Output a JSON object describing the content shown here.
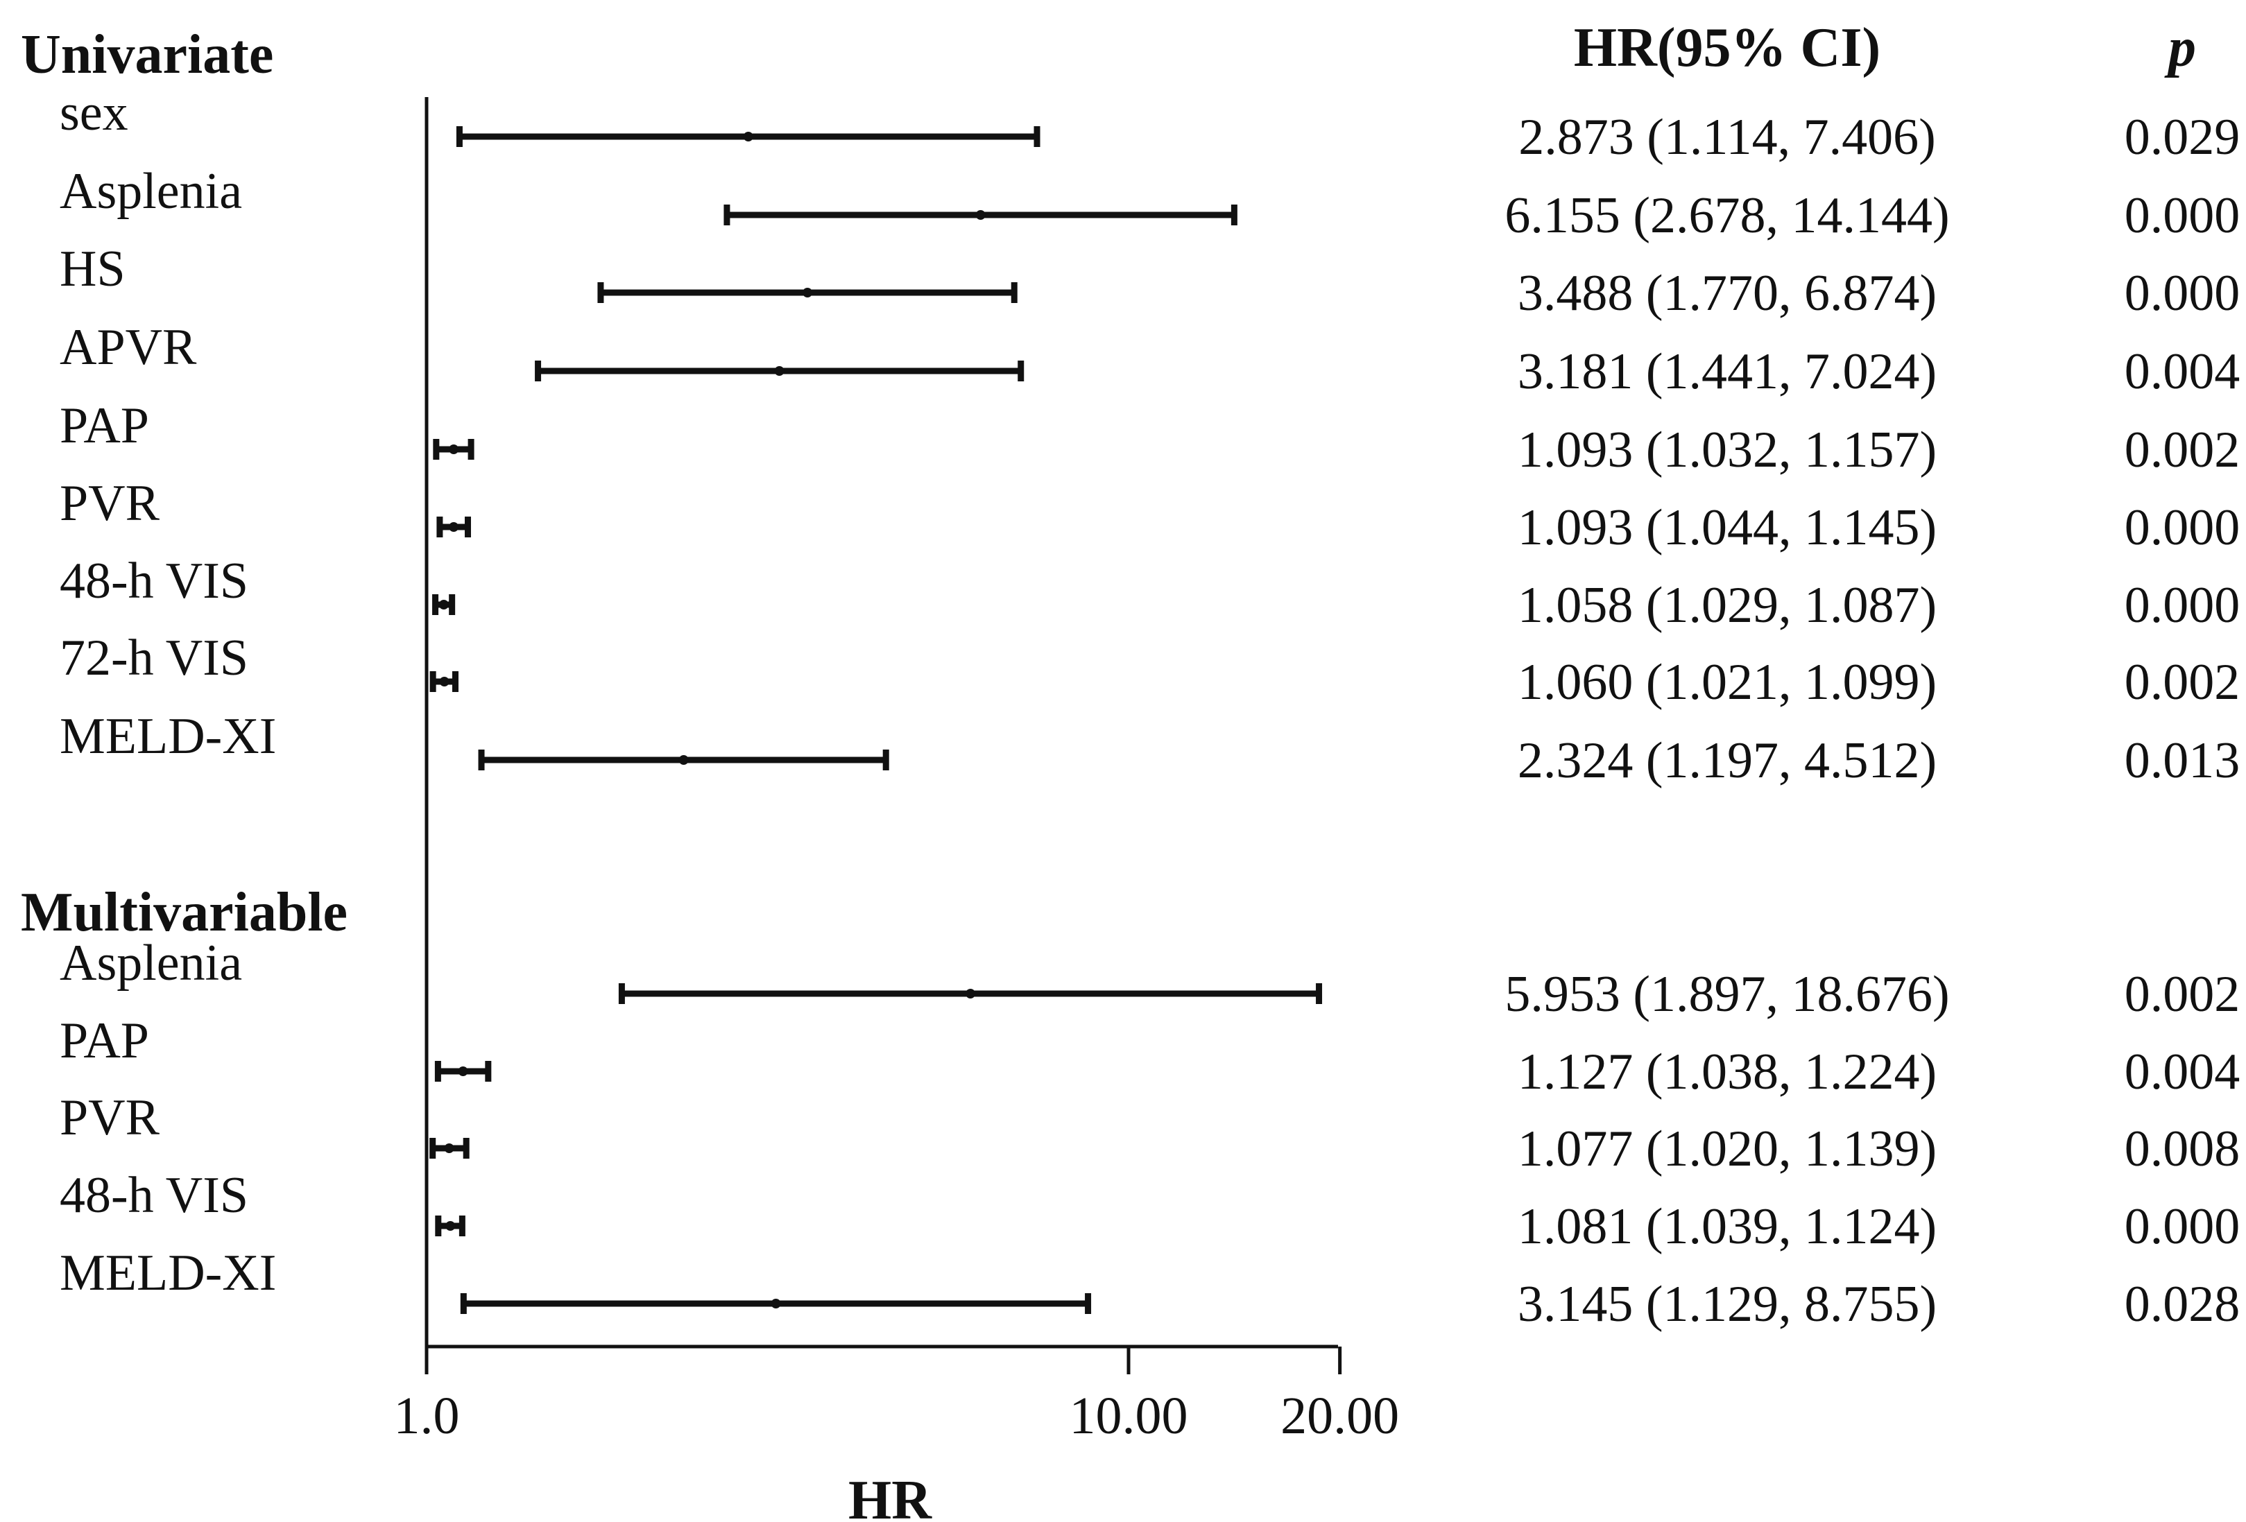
{
  "chart_data": {
    "type": "forest",
    "xlabel": "HR",
    "x_scale": "log",
    "xlim": [
      1.0,
      20.0
    ],
    "x_ticks": [
      {
        "value": 1.0,
        "label": "1.0"
      },
      {
        "value": 10.0,
        "label": "10.00"
      },
      {
        "value": 20.0,
        "label": "20.00"
      }
    ],
    "columns": {
      "ci": "HR(95% CI)",
      "p": "p"
    },
    "groups": [
      {
        "name": "Univariate",
        "rows": [
          {
            "label": "sex",
            "hr": 2.873,
            "lo": 1.114,
            "hi": 7.406,
            "ci_text": "2.873 (1.114, 7.406)",
            "p": "0.029"
          },
          {
            "label": "Asplenia",
            "hr": 6.155,
            "lo": 2.678,
            "hi": 14.144,
            "ci_text": "6.155 (2.678, 14.144)",
            "p": "0.000"
          },
          {
            "label": "HS",
            "hr": 3.488,
            "lo": 1.77,
            "hi": 6.874,
            "ci_text": "3.488 (1.770, 6.874)",
            "p": "0.000"
          },
          {
            "label": "APVR",
            "hr": 3.181,
            "lo": 1.441,
            "hi": 7.024,
            "ci_text": "3.181 (1.441, 7.024)",
            "p": "0.004"
          },
          {
            "label": "PAP",
            "hr": 1.093,
            "lo": 1.032,
            "hi": 1.157,
            "ci_text": "1.093 (1.032, 1.157)",
            "p": "0.002"
          },
          {
            "label": "PVR",
            "hr": 1.093,
            "lo": 1.044,
            "hi": 1.145,
            "ci_text": "1.093 (1.044, 1.145)",
            "p": "0.000"
          },
          {
            "label": "48-h VIS",
            "hr": 1.058,
            "lo": 1.029,
            "hi": 1.087,
            "ci_text": "1.058 (1.029, 1.087)",
            "p": "0.000"
          },
          {
            "label": "72-h VIS",
            "hr": 1.06,
            "lo": 1.021,
            "hi": 1.099,
            "ci_text": "1.060 (1.021, 1.099)",
            "p": "0.002"
          },
          {
            "label": "MELD-XI",
            "hr": 2.324,
            "lo": 1.197,
            "hi": 4.512,
            "ci_text": "2.324 (1.197, 4.512)",
            "p": "0.013"
          }
        ]
      },
      {
        "name": "Multivariable",
        "rows": [
          {
            "label": "Asplenia",
            "hr": 5.953,
            "lo": 1.897,
            "hi": 18.676,
            "ci_text": "5.953 (1.897, 18.676)",
            "p": "0.002"
          },
          {
            "label": "PAP",
            "hr": 1.127,
            "lo": 1.038,
            "hi": 1.224,
            "ci_text": "1.127 (1.038, 1.224)",
            "p": "0.004"
          },
          {
            "label": "PVR",
            "hr": 1.077,
            "lo": 1.02,
            "hi": 1.139,
            "ci_text": "1.077 (1.020, 1.139)",
            "p": "0.008"
          },
          {
            "label": "48-h VIS",
            "hr": 1.081,
            "lo": 1.039,
            "hi": 1.124,
            "ci_text": "1.081 (1.039, 1.124)",
            "p": "0.000"
          },
          {
            "label": "MELD-XI",
            "hr": 3.145,
            "lo": 1.129,
            "hi": 8.755,
            "ci_text": "3.145 (1.129, 8.755)",
            "p": "0.028"
          }
        ]
      }
    ]
  }
}
